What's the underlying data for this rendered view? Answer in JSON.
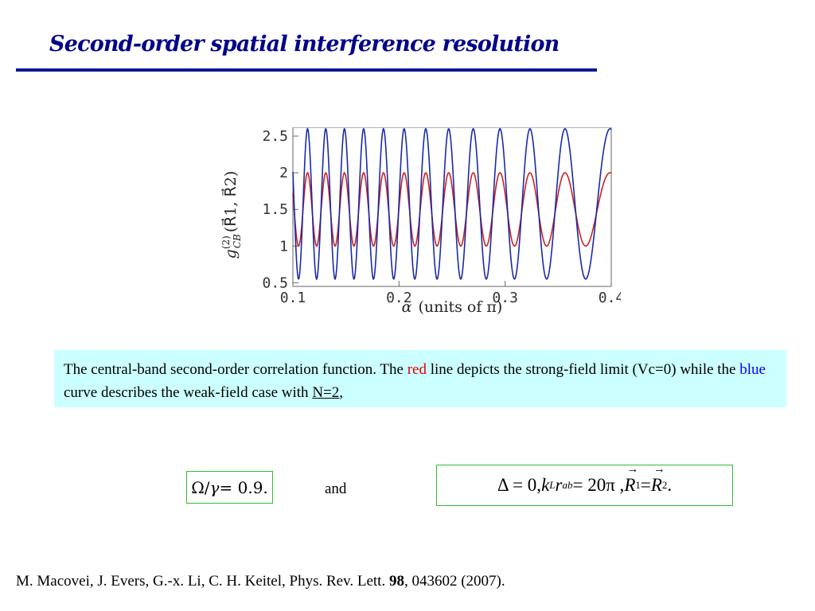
{
  "slide": {
    "title": "Second-order spatial interference resolution"
  },
  "chart_data": {
    "type": "line",
    "ylabel": "g(2)CB(R1, R2)",
    "ylabel_parts": {
      "g": "g",
      "sup": "(2)",
      "sub": "CB",
      "args": "(R⃗1, R⃗2)"
    },
    "xlabel_parts": {
      "alpha": "α",
      "rest": "(units of π)"
    },
    "xlim": [
      0.1,
      0.4
    ],
    "ylim": [
      0.45,
      2.62
    ],
    "x_ticks": [
      0.1,
      0.2,
      0.3,
      0.4
    ],
    "x_tick_labels": [
      "0.1",
      "0.2",
      "0.3",
      "0.4"
    ],
    "y_ticks": [
      0.5,
      1,
      1.5,
      2,
      2.5
    ],
    "y_tick_labels": [
      "0.5",
      "1",
      "1.5",
      "2",
      "2.5"
    ],
    "grid": false,
    "series": [
      {
        "color": "#cc2222",
        "formula": "1.5 + 0.5*cos(40*pi*sin(pi*alpha))",
        "peaks": [
          [
            0.1,
            2.0
          ],
          [
            0.148,
            2.0
          ],
          [
            0.2,
            2.0
          ],
          [
            0.25,
            2.0
          ],
          [
            0.3,
            2.0
          ],
          [
            0.35,
            2.0
          ],
          [
            0.4,
            2.0
          ]
        ],
        "troughs": [
          [
            0.125,
            1.0
          ],
          [
            0.174,
            1.0
          ],
          [
            0.225,
            1.0
          ],
          [
            0.275,
            1.0
          ],
          [
            0.325,
            1.0
          ],
          [
            0.375,
            1.0
          ]
        ]
      },
      {
        "color": "#1a2aa8",
        "formula": "1.575 + 1.025*cos(40*pi*sin(pi*alpha))",
        "peaks": [
          [
            0.1,
            2.6
          ],
          [
            0.148,
            2.6
          ],
          [
            0.2,
            2.6
          ],
          [
            0.25,
            2.6
          ],
          [
            0.3,
            2.6
          ],
          [
            0.35,
            2.6
          ],
          [
            0.4,
            2.6
          ]
        ],
        "troughs": [
          [
            0.125,
            0.55
          ],
          [
            0.174,
            0.55
          ],
          [
            0.225,
            0.55
          ],
          [
            0.275,
            0.55
          ],
          [
            0.325,
            0.55
          ],
          [
            0.375,
            0.55
          ]
        ]
      }
    ]
  },
  "caption": {
    "part1": "The central-band second-order correlation function. The ",
    "red_word": "red",
    "part2": " line depicts the strong-field limit (Vc=0) while the ",
    "blue_word": "blue",
    "part3": " curve describes the weak-field case with ",
    "n_value": "N=2",
    "part4": ","
  },
  "equations": {
    "left": {
      "omega": "Ω",
      "slash": "/",
      "gamma": "γ",
      "rest": " = 0.9."
    },
    "connector": "and",
    "right": {
      "delta": "Δ = 0, ",
      "k": "k",
      "k_sub": "L",
      "r": "r",
      "r_sub": "ab",
      "mid": " = 20π , ",
      "R": "R",
      "R1_sub": "1",
      "eq": " = ",
      "R2_sub": "2",
      "end": " ."
    }
  },
  "citation": {
    "prefix": "M. Macovei, J. Evers, G.-x. Li, C. H. Keitel, Phys. Rev. Lett. ",
    "volume": "98",
    "suffix": ", 043602 (2007)."
  }
}
